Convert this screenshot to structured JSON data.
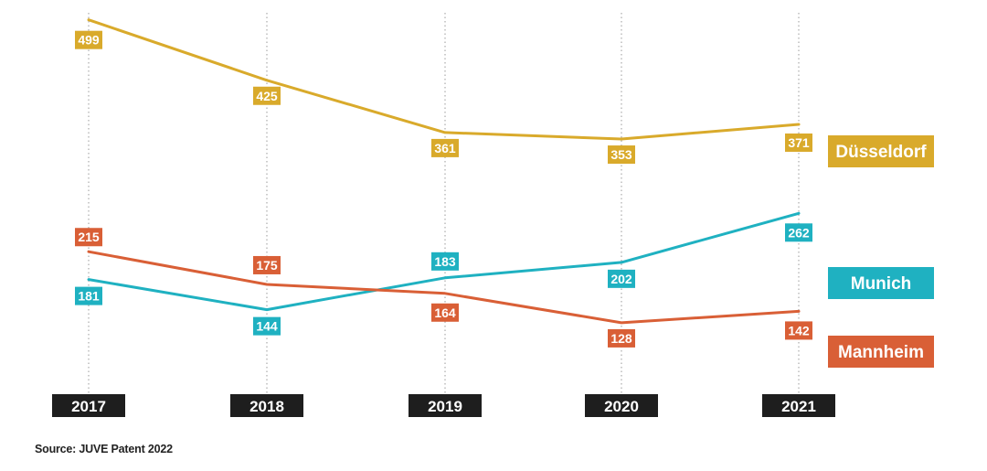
{
  "chart_data": {
    "type": "line",
    "x": [
      "2017",
      "2018",
      "2019",
      "2020",
      "2021"
    ],
    "series": [
      {
        "name": "Düsseldorf",
        "values": [
          499,
          425,
          361,
          353,
          371
        ],
        "color": "#D9AA2B"
      },
      {
        "name": "Munich",
        "values": [
          181,
          144,
          183,
          202,
          262
        ],
        "color": "#1FB1C1"
      },
      {
        "name": "Mannheim",
        "values": [
          215,
          175,
          164,
          128,
          142
        ],
        "color": "#D95F36"
      }
    ],
    "grid": "vertical-dotted",
    "legend_placement": "right"
  },
  "source": "Source: JUVE Patent 2022",
  "colors": {
    "year_box": "#1E1E1E",
    "gridline": "#9A9A9A"
  }
}
